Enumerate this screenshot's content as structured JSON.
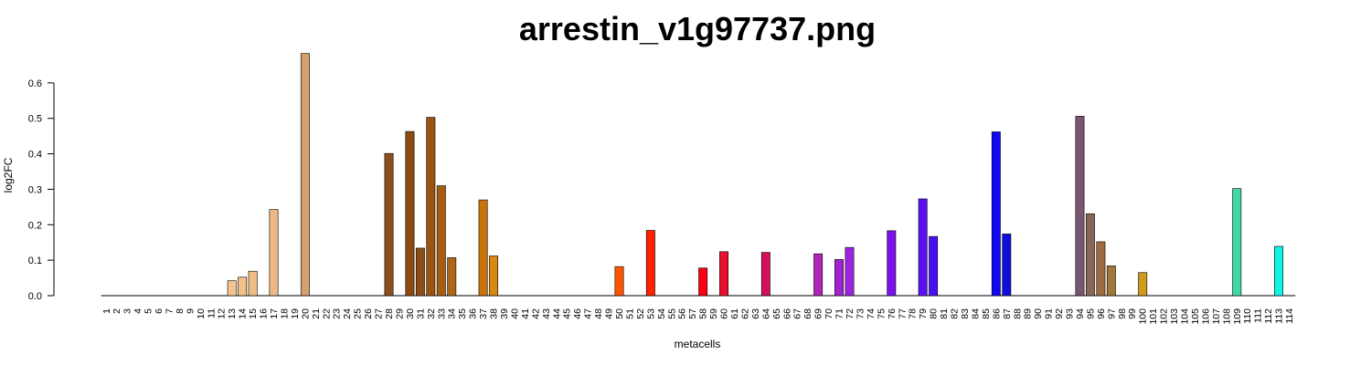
{
  "chart_data": {
    "type": "bar",
    "title": "arrestin_v1g97737.png",
    "xlabel": "metacells",
    "ylabel": "log2FC",
    "ylim": [
      0,
      0.7
    ],
    "yticks": [
      "0.0",
      "0.1",
      "0.2",
      "0.3",
      "0.4",
      "0.5",
      "0.6"
    ],
    "grid": false,
    "legend": "none",
    "categories": [
      "1",
      "2",
      "3",
      "4",
      "5",
      "6",
      "7",
      "8",
      "9",
      "10",
      "11",
      "12",
      "13",
      "14",
      "15",
      "16",
      "17",
      "18",
      "19",
      "20",
      "21",
      "22",
      "23",
      "24",
      "25",
      "26",
      "27",
      "28",
      "29",
      "30",
      "31",
      "32",
      "33",
      "34",
      "35",
      "36",
      "37",
      "38",
      "39",
      "40",
      "41",
      "42",
      "43",
      "44",
      "45",
      "46",
      "47",
      "48",
      "49",
      "50",
      "51",
      "52",
      "53",
      "54",
      "55",
      "56",
      "57",
      "58",
      "59",
      "60",
      "61",
      "62",
      "63",
      "64",
      "65",
      "66",
      "67",
      "68",
      "69",
      "70",
      "71",
      "72",
      "73",
      "74",
      "75",
      "76",
      "77",
      "78",
      "79",
      "80",
      "81",
      "82",
      "83",
      "84",
      "85",
      "86",
      "87",
      "88",
      "89",
      "90",
      "91",
      "92",
      "93",
      "94",
      "95",
      "96",
      "97",
      "98",
      "99",
      "100",
      "101",
      "102",
      "103",
      "104",
      "105",
      "106",
      "107",
      "108",
      "109",
      "110",
      "111",
      "112",
      "113",
      "114"
    ],
    "values": [
      0,
      0,
      0,
      0,
      0,
      0,
      0,
      0,
      0,
      0,
      0,
      0,
      0.042,
      0.052,
      0.069,
      0,
      0.243,
      0,
      0,
      0.683,
      0,
      0,
      0,
      0,
      0,
      0,
      0,
      0.401,
      0,
      0.463,
      0.134,
      0.503,
      0.31,
      0.107,
      0,
      0,
      0.27,
      0.112,
      0,
      0,
      0,
      0,
      0,
      0,
      0,
      0,
      0,
      0,
      0,
      0.082,
      0,
      0,
      0.184,
      0,
      0,
      0,
      0,
      0.078,
      0,
      0.124,
      0,
      0,
      0,
      0.122,
      0,
      0,
      0,
      0,
      0.118,
      0,
      0.102,
      0.136,
      0,
      0,
      0,
      0.183,
      0,
      0,
      0.273,
      0.167,
      0,
      0,
      0,
      0,
      0,
      0.462,
      0.174,
      0,
      0,
      0,
      0,
      0,
      0,
      0.506,
      0.231,
      0.152,
      0.084,
      0,
      0,
      0.065,
      0,
      0,
      0,
      0,
      0,
      0,
      0,
      0,
      0.302,
      0,
      0,
      0,
      0.139,
      0
    ],
    "colors": {
      "13": "#F5C48F",
      "14": "#F2C089",
      "15": "#EFBC84",
      "17": "#EDB986",
      "20": "#D4A06E",
      "28": "#8B4F1F",
      "30": "#8C4B12",
      "31": "#8D4E16",
      "32": "#9A540F",
      "33": "#A85C12",
      "34": "#B0661A",
      "37": "#C8740A",
      "38": "#D8890F",
      "50": "#FF5500",
      "53": "#FF2200",
      "58": "#FF0011",
      "60": "#E8102E",
      "64": "#D4105A",
      "69": "#B024B8",
      "71": "#A022D0",
      "72": "#9C24E0",
      "76": "#7A10EE",
      "79": "#5A10F4",
      "80": "#4A10F4",
      "86": "#1008F0",
      "87": "#0E0EDD",
      "94": "#7A5670",
      "95": "#8A6658",
      "96": "#9E6A40",
      "97": "#A07838",
      "100": "#D09A1C",
      "109": "#40D8A8",
      "113": "#10F4E4"
    }
  }
}
